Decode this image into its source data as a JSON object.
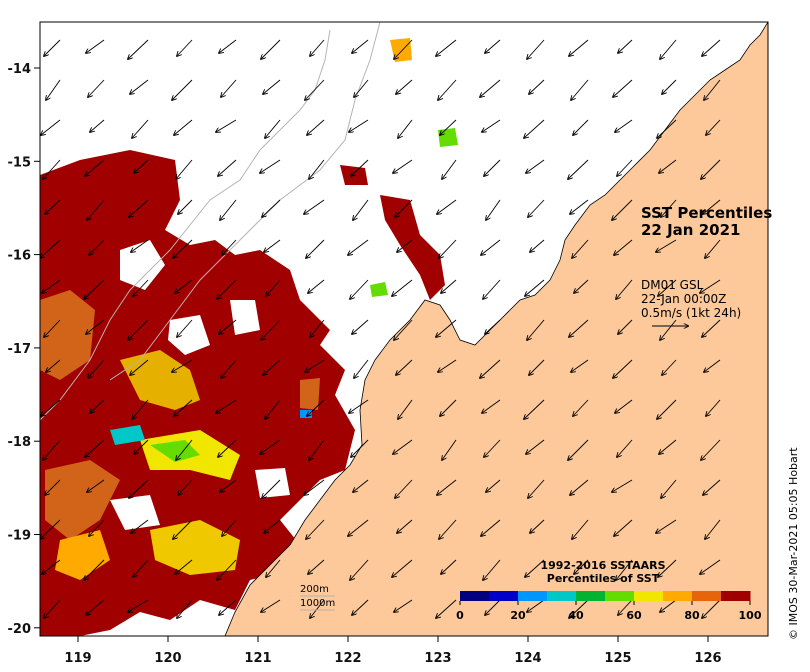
{
  "title": {
    "line1": "SST Percentiles",
    "line2": "22 Jan 2021"
  },
  "current_info": {
    "source": "DM01 GSL",
    "time": "22-Jan 00:00Z",
    "scale": "0.5m/s (1kt 24h)"
  },
  "bathymetry_legend": {
    "line1": "200m",
    "line2": "1000m"
  },
  "colorbar": {
    "title_line1": "1992-2016 SSTAARS",
    "title_line2": "Percentiles of SST",
    "ticks": [
      "0",
      "20",
      "40",
      "60",
      "80",
      "100"
    ],
    "colors": [
      "#000080",
      "#0000c8",
      "#0096ff",
      "#00c8c8",
      "#00b432",
      "#64dc00",
      "#f0e600",
      "#ffaa00",
      "#e6640a",
      "#a00000"
    ]
  },
  "axes": {
    "x_ticks": [
      "119",
      "120",
      "121",
      "122",
      "123",
      "124",
      "125",
      "126"
    ],
    "y_ticks": [
      "-14",
      "-15",
      "-16",
      "-17",
      "-18",
      "-19",
      "-20"
    ]
  },
  "credit": "© IMOS 30-Mar-2021 05:05 Hobart",
  "colors": {
    "land": "#fdc99a",
    "warm_extreme": "#a00000",
    "frame": "#000000"
  }
}
